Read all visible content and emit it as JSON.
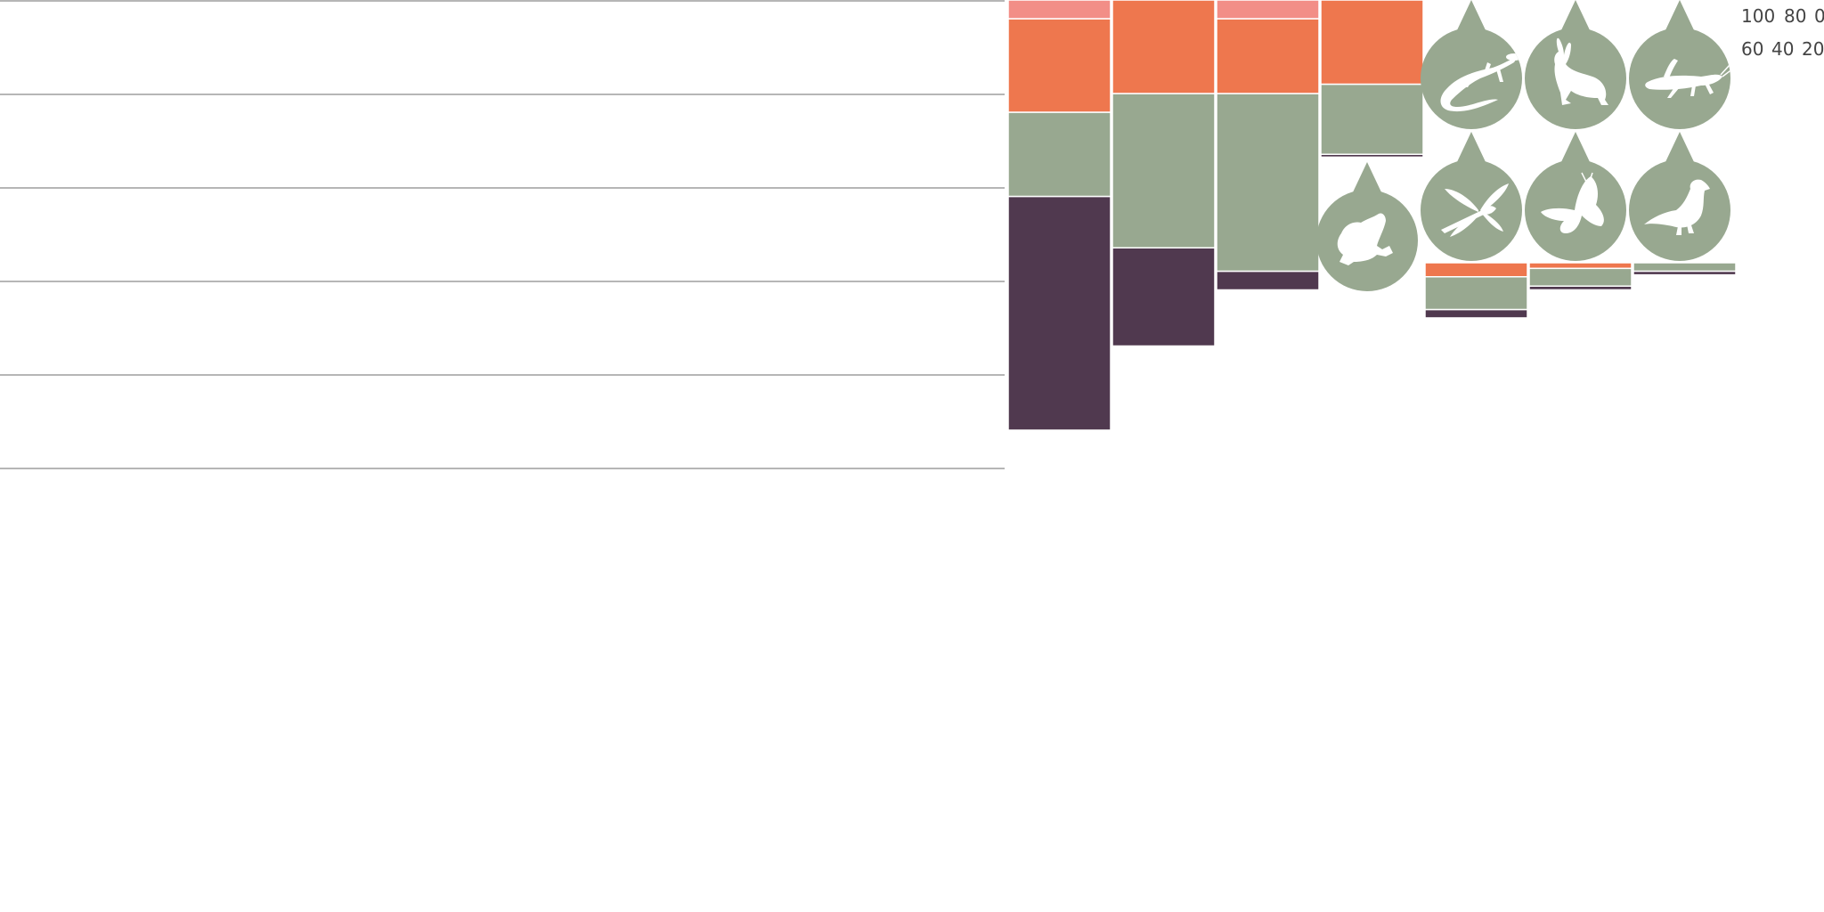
{
  "chart_data": {
    "type": "bar",
    "stacked": true,
    "title": "",
    "xlabel": "",
    "ylabel": "",
    "tick_labels": [
      "100",
      "80",
      "0",
      "60",
      "40",
      "20"
    ],
    "gridlines": true,
    "categories": [
      "lizard",
      "rabbit",
      "grasshopper",
      "frog",
      "dragonfly",
      "butterfly",
      "bird"
    ],
    "series": [
      {
        "color": "#50394f",
        "values": [
          50,
          21,
          4,
          0.6,
          1.8,
          0.8,
          0.8
        ]
      },
      {
        "color": "#98a890",
        "values": [
          18,
          33,
          38,
          15,
          7,
          3.8,
          1.8
        ]
      },
      {
        "color": "#ee774e",
        "values": [
          20,
          20,
          16,
          18,
          3,
          1.2,
          0
        ]
      },
      {
        "color": "#f28e87",
        "values": [
          4,
          0,
          4,
          0,
          0,
          0,
          0
        ]
      }
    ],
    "icons": [
      "lizard-icon",
      "rabbit-icon",
      "grasshopper-icon",
      "frog-icon",
      "dragonfly-icon",
      "butterfly-icon",
      "bird-icon"
    ]
  }
}
